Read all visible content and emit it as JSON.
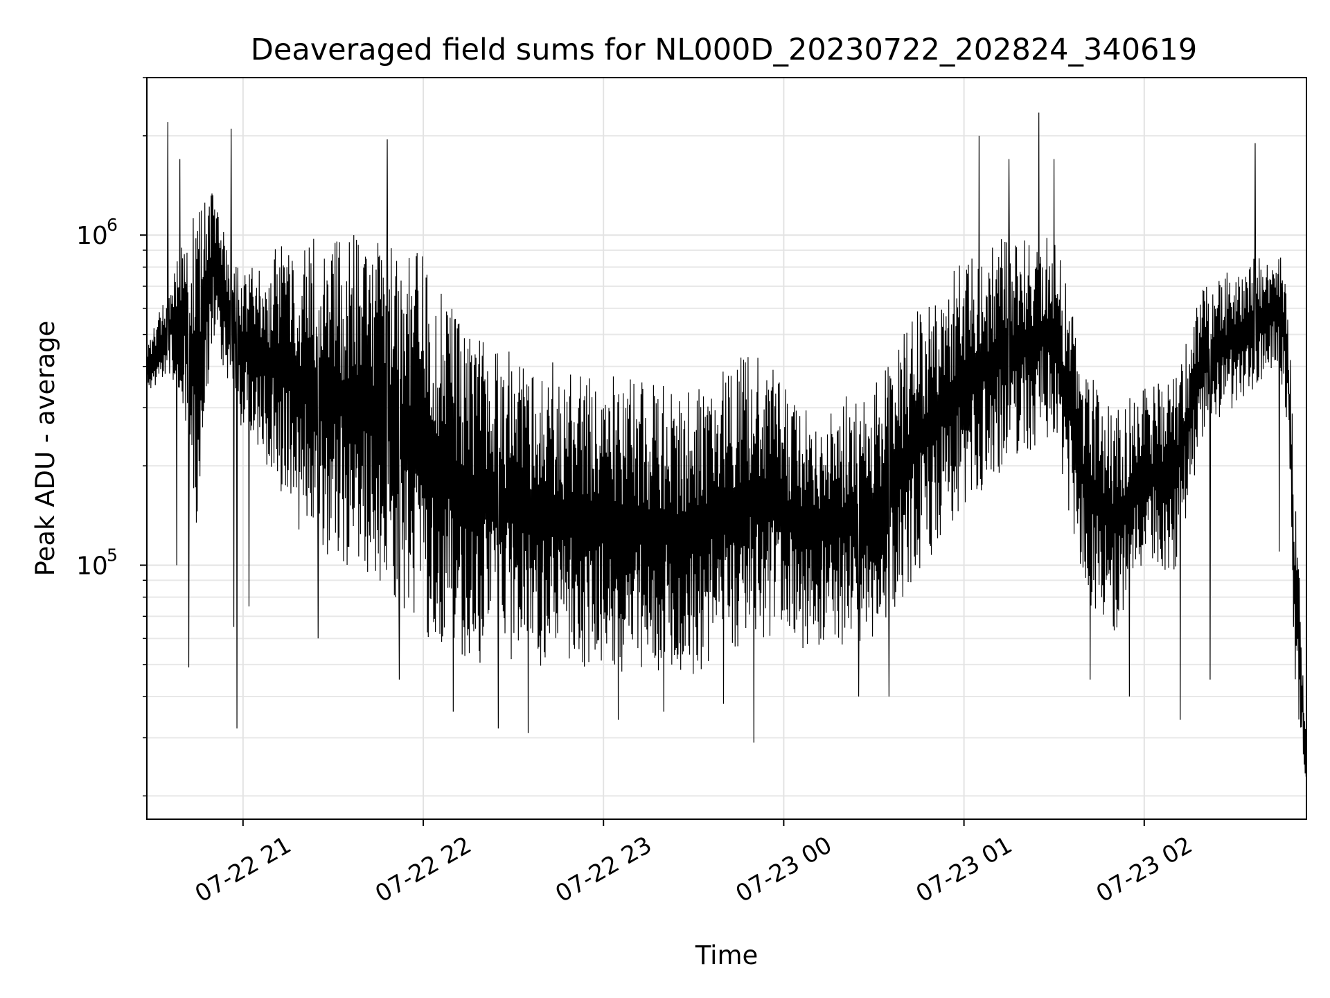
{
  "chart_data": {
    "type": "line",
    "title": "Deaveraged field sums for NL000D_20230722_202824_340619",
    "xlabel": "Time",
    "ylabel": "Peak ADU - average",
    "yscale": "log",
    "xlim": [
      "2023-07-22 20:28",
      "2023-07-23 02:54"
    ],
    "ylim": [
      17000,
      3000000
    ],
    "grid": true,
    "line_color": "#000000",
    "x_ticks": [
      {
        "value": "2023-07-22 21:00",
        "label": "07-22 21"
      },
      {
        "value": "2023-07-22 22:00",
        "label": "07-22 22"
      },
      {
        "value": "2023-07-22 23:00",
        "label": "07-22 23"
      },
      {
        "value": "2023-07-23 00:00",
        "label": "07-23 00"
      },
      {
        "value": "2023-07-23 01:00",
        "label": "07-23 01"
      },
      {
        "value": "2023-07-23 02:00",
        "label": "07-23 02"
      }
    ],
    "y_ticks": [
      {
        "value": 100000,
        "base": "10",
        "exp": "5"
      },
      {
        "value": 1000000,
        "base": "10",
        "exp": "6"
      }
    ],
    "envelope": [
      {
        "t": "2023-07-22 20:28",
        "low": 330000,
        "high": 450000
      },
      {
        "t": "2023-07-22 20:35",
        "low": 380000,
        "high": 700000
      },
      {
        "t": "2023-07-22 20:40",
        "low": 300000,
        "high": 1100000
      },
      {
        "t": "2023-07-22 20:45",
        "low": 120000,
        "high": 1200000
      },
      {
        "t": "2023-07-22 20:50",
        "low": 500000,
        "high": 1400000
      },
      {
        "t": "2023-07-22 20:55",
        "low": 350000,
        "high": 900000
      },
      {
        "t": "2023-07-22 21:00",
        "low": 250000,
        "high": 800000
      },
      {
        "t": "2023-07-22 21:10",
        "low": 180000,
        "high": 900000
      },
      {
        "t": "2023-07-22 21:20",
        "low": 120000,
        "high": 1000000
      },
      {
        "t": "2023-07-22 21:30",
        "low": 100000,
        "high": 1050000
      },
      {
        "t": "2023-07-22 21:45",
        "low": 90000,
        "high": 1000000
      },
      {
        "t": "2023-07-22 22:00",
        "low": 60000,
        "high": 900000
      },
      {
        "t": "2023-07-22 22:15",
        "low": 50000,
        "high": 500000
      },
      {
        "t": "2023-07-22 22:30",
        "low": 50000,
        "high": 450000
      },
      {
        "t": "2023-07-22 23:00",
        "low": 48000,
        "high": 380000
      },
      {
        "t": "2023-07-22 23:30",
        "low": 45000,
        "high": 350000
      },
      {
        "t": "2023-07-22 23:50",
        "low": 60000,
        "high": 450000
      },
      {
        "t": "2023-07-23 00:10",
        "low": 55000,
        "high": 300000
      },
      {
        "t": "2023-07-23 00:30",
        "low": 60000,
        "high": 350000
      },
      {
        "t": "2023-07-23 00:45",
        "low": 90000,
        "high": 650000
      },
      {
        "t": "2023-07-23 01:00",
        "low": 150000,
        "high": 850000
      },
      {
        "t": "2023-07-23 01:15",
        "low": 200000,
        "high": 1000000
      },
      {
        "t": "2023-07-23 01:30",
        "low": 250000,
        "high": 1050000
      },
      {
        "t": "2023-07-23 01:40",
        "low": 80000,
        "high": 400000
      },
      {
        "t": "2023-07-23 01:50",
        "low": 60000,
        "high": 300000
      },
      {
        "t": "2023-07-23 02:00",
        "low": 100000,
        "high": 350000
      },
      {
        "t": "2023-07-23 02:10",
        "low": 90000,
        "high": 400000
      },
      {
        "t": "2023-07-23 02:20",
        "low": 250000,
        "high": 700000
      },
      {
        "t": "2023-07-23 02:30",
        "low": 300000,
        "high": 800000
      },
      {
        "t": "2023-07-23 02:45",
        "low": 400000,
        "high": 950000
      },
      {
        "t": "2023-07-23 02:48",
        "low": 250000,
        "high": 600000
      },
      {
        "t": "2023-07-23 02:50",
        "low": 45000,
        "high": 200000
      },
      {
        "t": "2023-07-23 02:54",
        "low": 20000,
        "high": 30000
      }
    ],
    "spikes": [
      {
        "t": "2023-07-22 20:35",
        "y": 2200000
      },
      {
        "t": "2023-07-22 20:38",
        "y": 100000
      },
      {
        "t": "2023-07-22 20:39",
        "y": 1700000
      },
      {
        "t": "2023-07-22 20:42",
        "y": 49000
      },
      {
        "t": "2023-07-22 20:56",
        "y": 2100000
      },
      {
        "t": "2023-07-22 20:57",
        "y": 65000
      },
      {
        "t": "2023-07-22 20:58",
        "y": 32000
      },
      {
        "t": "2023-07-22 21:02",
        "y": 75000
      },
      {
        "t": "2023-07-22 21:25",
        "y": 60000
      },
      {
        "t": "2023-07-22 21:48",
        "y": 1950000
      },
      {
        "t": "2023-07-22 21:52",
        "y": 45000
      },
      {
        "t": "2023-07-22 22:10",
        "y": 36000
      },
      {
        "t": "2023-07-22 22:25",
        "y": 32000
      },
      {
        "t": "2023-07-22 22:35",
        "y": 31000
      },
      {
        "t": "2023-07-22 23:05",
        "y": 34000
      },
      {
        "t": "2023-07-22 23:20",
        "y": 36000
      },
      {
        "t": "2023-07-22 23:40",
        "y": 38000
      },
      {
        "t": "2023-07-22 23:50",
        "y": 29000
      },
      {
        "t": "2023-07-23 00:25",
        "y": 40000
      },
      {
        "t": "2023-07-23 00:35",
        "y": 40000
      },
      {
        "t": "2023-07-23 01:05",
        "y": 2000000
      },
      {
        "t": "2023-07-23 01:15",
        "y": 1700000
      },
      {
        "t": "2023-07-23 01:25",
        "y": 2350000
      },
      {
        "t": "2023-07-23 01:30",
        "y": 1700000
      },
      {
        "t": "2023-07-23 01:42",
        "y": 45000
      },
      {
        "t": "2023-07-23 01:55",
        "y": 40000
      },
      {
        "t": "2023-07-23 02:12",
        "y": 34000
      },
      {
        "t": "2023-07-23 02:22",
        "y": 45000
      },
      {
        "t": "2023-07-23 02:37",
        "y": 1900000
      },
      {
        "t": "2023-07-23 02:45",
        "y": 110000
      }
    ]
  }
}
